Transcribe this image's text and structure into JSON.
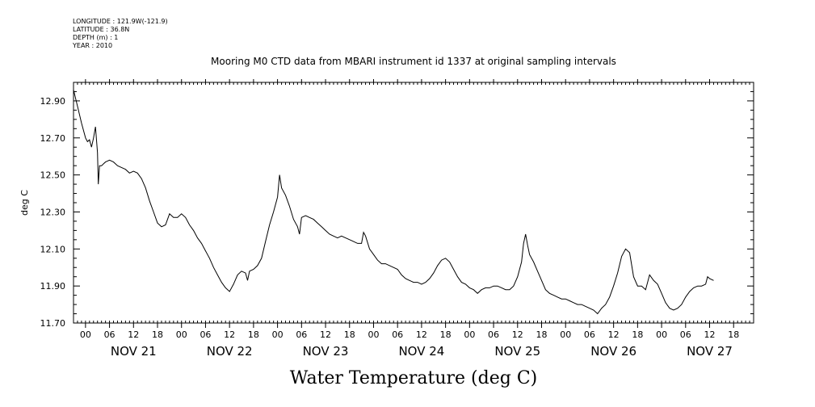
{
  "meta": {
    "longitude": "LONGITUDE : 121.9W(-121.9)",
    "latitude": "LATITUDE : 36.8N",
    "depth": "DEPTH (m) : 1",
    "year": "YEAR : 2010"
  },
  "chart_data": {
    "type": "line",
    "title": "Mooring M0 CTD data from MBARI instrument id 1337 at original sampling intervals",
    "xlabel": "Water Temperature (deg C)",
    "ylabel": "deg C",
    "ylim": [
      11.7,
      13.0
    ],
    "yticks": [
      "12.90",
      "12.70",
      "12.50",
      "12.30",
      "12.10",
      "11.90",
      "11.70"
    ],
    "xlim_hours": [
      -3,
      167
    ],
    "hour_ticks": [
      "00",
      "06",
      "12",
      "18",
      "00",
      "06",
      "12",
      "18",
      "00",
      "06",
      "12",
      "18",
      "00",
      "06",
      "12",
      "18",
      "00",
      "06",
      "12",
      "18",
      "00",
      "06",
      "12",
      "18",
      "00",
      "06",
      "12",
      "18"
    ],
    "day_labels": [
      "NOV 21",
      "NOV 22",
      "NOV 23",
      "NOV 24",
      "NOV 25",
      "NOV 26",
      "NOV 27"
    ],
    "series": [
      {
        "values": [
          [
            -3,
            12.96
          ],
          [
            -2,
            12.87
          ],
          [
            -1,
            12.78
          ],
          [
            0,
            12.7
          ],
          [
            0.5,
            12.68
          ],
          [
            1,
            12.69
          ],
          [
            1.5,
            12.65
          ],
          [
            2,
            12.7
          ],
          [
            2.5,
            12.76
          ],
          [
            3,
            12.62
          ],
          [
            3.2,
            12.45
          ],
          [
            3.5,
            12.55
          ],
          [
            4,
            12.55
          ],
          [
            5,
            12.57
          ],
          [
            6,
            12.58
          ],
          [
            7,
            12.57
          ],
          [
            8,
            12.55
          ],
          [
            9,
            12.54
          ],
          [
            10,
            12.53
          ],
          [
            11,
            12.51
          ],
          [
            12,
            12.52
          ],
          [
            13,
            12.51
          ],
          [
            14,
            12.48
          ],
          [
            15,
            12.43
          ],
          [
            16,
            12.36
          ],
          [
            17,
            12.3
          ],
          [
            18,
            12.24
          ],
          [
            19,
            12.22
          ],
          [
            20,
            12.23
          ],
          [
            21,
            12.29
          ],
          [
            22,
            12.27
          ],
          [
            23,
            12.27
          ],
          [
            24,
            12.29
          ],
          [
            25,
            12.27
          ],
          [
            26,
            12.23
          ],
          [
            27,
            12.2
          ],
          [
            28,
            12.16
          ],
          [
            29,
            12.13
          ],
          [
            30,
            12.09
          ],
          [
            31,
            12.05
          ],
          [
            32,
            12.0
          ],
          [
            33,
            11.96
          ],
          [
            34,
            11.92
          ],
          [
            35,
            11.89
          ],
          [
            36,
            11.87
          ],
          [
            37,
            11.91
          ],
          [
            38,
            11.96
          ],
          [
            39,
            11.98
          ],
          [
            40,
            11.97
          ],
          [
            40.5,
            11.93
          ],
          [
            41,
            11.98
          ],
          [
            42,
            11.99
          ],
          [
            43,
            12.01
          ],
          [
            44,
            12.05
          ],
          [
            45,
            12.14
          ],
          [
            46,
            12.23
          ],
          [
            47,
            12.3
          ],
          [
            48,
            12.38
          ],
          [
            48.5,
            12.5
          ],
          [
            49,
            12.43
          ],
          [
            50,
            12.39
          ],
          [
            51,
            12.33
          ],
          [
            52,
            12.26
          ],
          [
            53,
            12.22
          ],
          [
            53.5,
            12.18
          ],
          [
            54,
            12.27
          ],
          [
            55,
            12.28
          ],
          [
            56,
            12.27
          ],
          [
            57,
            12.26
          ],
          [
            58,
            12.24
          ],
          [
            59,
            12.22
          ],
          [
            60,
            12.2
          ],
          [
            61,
            12.18
          ],
          [
            62,
            12.17
          ],
          [
            63,
            12.16
          ],
          [
            64,
            12.17
          ],
          [
            65,
            12.16
          ],
          [
            66,
            12.15
          ],
          [
            67,
            12.14
          ],
          [
            68,
            12.13
          ],
          [
            69,
            12.13
          ],
          [
            69.5,
            12.19
          ],
          [
            70,
            12.17
          ],
          [
            71,
            12.1
          ],
          [
            72,
            12.07
          ],
          [
            73,
            12.04
          ],
          [
            74,
            12.02
          ],
          [
            75,
            12.02
          ],
          [
            76,
            12.01
          ],
          [
            77,
            12.0
          ],
          [
            78,
            11.99
          ],
          [
            79,
            11.96
          ],
          [
            80,
            11.94
          ],
          [
            81,
            11.93
          ],
          [
            82,
            11.92
          ],
          [
            83,
            11.92
          ],
          [
            84,
            11.91
          ],
          [
            85,
            11.92
          ],
          [
            86,
            11.94
          ],
          [
            87,
            11.97
          ],
          [
            88,
            12.01
          ],
          [
            89,
            12.04
          ],
          [
            90,
            12.05
          ],
          [
            91,
            12.03
          ],
          [
            92,
            11.99
          ],
          [
            93,
            11.95
          ],
          [
            94,
            11.92
          ],
          [
            95,
            11.91
          ],
          [
            96,
            11.89
          ],
          [
            97,
            11.88
          ],
          [
            98,
            11.86
          ],
          [
            99,
            11.88
          ],
          [
            100,
            11.89
          ],
          [
            101,
            11.89
          ],
          [
            102,
            11.9
          ],
          [
            103,
            11.9
          ],
          [
            104,
            11.89
          ],
          [
            105,
            11.88
          ],
          [
            106,
            11.88
          ],
          [
            107,
            11.9
          ],
          [
            108,
            11.95
          ],
          [
            109,
            12.03
          ],
          [
            109.5,
            12.13
          ],
          [
            110,
            12.18
          ],
          [
            110.5,
            12.12
          ],
          [
            111,
            12.07
          ],
          [
            112,
            12.03
          ],
          [
            113,
            11.98
          ],
          [
            114,
            11.93
          ],
          [
            115,
            11.88
          ],
          [
            116,
            11.86
          ],
          [
            117,
            11.85
          ],
          [
            118,
            11.84
          ],
          [
            119,
            11.83
          ],
          [
            120,
            11.83
          ],
          [
            121,
            11.82
          ],
          [
            122,
            11.81
          ],
          [
            123,
            11.8
          ],
          [
            124,
            11.8
          ],
          [
            125,
            11.79
          ],
          [
            126,
            11.78
          ],
          [
            127,
            11.77
          ],
          [
            128,
            11.75
          ],
          [
            129,
            11.78
          ],
          [
            130,
            11.8
          ],
          [
            131,
            11.84
          ],
          [
            132,
            11.9
          ],
          [
            133,
            11.97
          ],
          [
            134,
            12.06
          ],
          [
            135,
            12.1
          ],
          [
            136,
            12.08
          ],
          [
            137,
            11.95
          ],
          [
            138,
            11.9
          ],
          [
            139,
            11.9
          ],
          [
            140,
            11.88
          ],
          [
            141,
            11.96
          ],
          [
            142,
            11.93
          ],
          [
            143,
            11.91
          ],
          [
            144,
            11.86
          ],
          [
            145,
            11.81
          ],
          [
            146,
            11.78
          ],
          [
            147,
            11.77
          ],
          [
            148,
            11.78
          ],
          [
            149,
            11.8
          ],
          [
            150,
            11.84
          ],
          [
            151,
            11.87
          ],
          [
            152,
            11.89
          ],
          [
            153,
            11.9
          ],
          [
            154,
            11.9
          ],
          [
            155,
            11.91
          ],
          [
            155.5,
            11.95
          ],
          [
            156,
            11.94
          ],
          [
            157,
            11.93
          ]
        ]
      }
    ]
  }
}
